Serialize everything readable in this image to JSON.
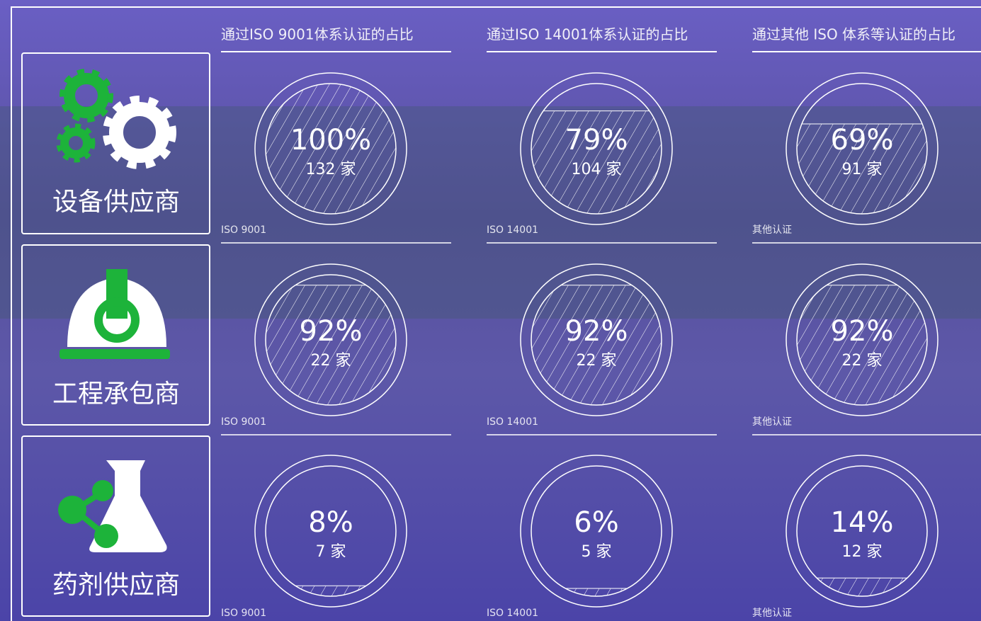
{
  "columns": [
    {
      "header": "通过ISO 9001体系认证的占比",
      "tag": "ISO 9001"
    },
    {
      "header": "通过ISO 14001体系认证的占比",
      "tag": "ISO 14001"
    },
    {
      "header": "通过其他 ISO 体系等认证的占比",
      "tag": "其他认证"
    }
  ],
  "rows": [
    {
      "label": "设备供应商",
      "cells": [
        {
          "value": 100,
          "value_label": "100%",
          "count_label": "132 家"
        },
        {
          "value": 79,
          "value_label": "79%",
          "count_label": "104 家"
        },
        {
          "value": 69,
          "value_label": "69%",
          "count_label": "91 家"
        }
      ]
    },
    {
      "label": "工程承包商",
      "cells": [
        {
          "value": 92,
          "value_label": "92%",
          "count_label": "22 家"
        },
        {
          "value": 92,
          "value_label": "92%",
          "count_label": "22 家"
        },
        {
          "value": 92,
          "value_label": "92%",
          "count_label": "22 家"
        }
      ]
    },
    {
      "label": "药剂供应商",
      "cells": [
        {
          "value": 8,
          "value_label": "8%",
          "count_label": "7 家"
        },
        {
          "value": 6,
          "value_label": "6%",
          "count_label": "5 家"
        },
        {
          "value": 14,
          "value_label": "14%",
          "count_label": "12 家"
        }
      ]
    }
  ]
}
